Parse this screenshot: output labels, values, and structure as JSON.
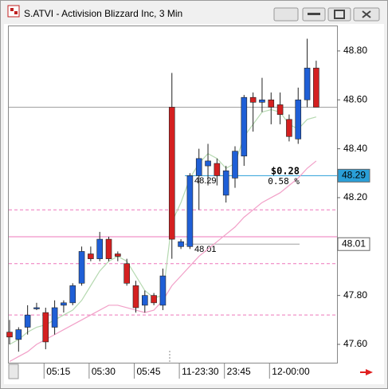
{
  "chart_data": {
    "type": "candlestick",
    "title": "S.ATVI - Activision Blizzard Inc, 3 Min",
    "categories": [
      null,
      null,
      null,
      null,
      "05:15",
      null,
      null,
      null,
      null,
      "05:30",
      null,
      null,
      null,
      null,
      "05:45",
      null,
      null,
      null,
      null,
      "11-23:30",
      null,
      null,
      null,
      null,
      "23:45",
      null,
      null,
      null,
      null,
      "12-00:00",
      null,
      null,
      null,
      null,
      null
    ],
    "open": [
      47.65,
      47.62,
      47.67,
      47.75,
      47.73,
      47.67,
      47.76,
      47.77,
      47.85,
      47.97,
      47.95,
      48.03,
      47.97,
      47.93,
      47.84,
      47.76,
      47.8,
      47.76,
      48.57,
      48.0,
      48.0,
      48.29,
      48.33,
      48.34,
      48.21,
      48.28,
      48.37,
      48.61,
      48.59,
      48.6,
      48.58,
      48.52,
      48.44,
      48.6,
      48.73
    ],
    "high": [
      47.7,
      47.67,
      47.76,
      47.77,
      47.75,
      47.78,
      47.78,
      47.85,
      48.0,
      48.0,
      48.06,
      48.04,
      47.98,
      47.95,
      47.86,
      47.82,
      47.81,
      47.91,
      48.71,
      48.03,
      48.3,
      48.4,
      48.42,
      48.36,
      48.33,
      48.41,
      48.62,
      48.63,
      48.69,
      48.63,
      48.63,
      48.54,
      48.65,
      48.85,
      48.76
    ],
    "low": [
      47.6,
      47.57,
      47.64,
      47.74,
      47.58,
      47.64,
      47.73,
      47.76,
      47.84,
      47.94,
      47.94,
      47.94,
      47.94,
      47.84,
      47.73,
      47.73,
      47.76,
      47.74,
      47.95,
      47.99,
      47.99,
      48.15,
      48.25,
      48.25,
      48.18,
      48.24,
      48.33,
      48.47,
      48.55,
      48.5,
      48.5,
      48.43,
      48.42,
      48.57,
      48.57
    ],
    "close": [
      47.63,
      47.66,
      47.72,
      47.75,
      47.61,
      47.75,
      47.77,
      47.84,
      47.98,
      47.95,
      48.03,
      47.95,
      47.96,
      47.85,
      47.75,
      47.8,
      47.77,
      47.88,
      48.03,
      48.02,
      48.29,
      48.36,
      48.35,
      48.29,
      48.31,
      48.39,
      48.61,
      48.59,
      48.6,
      48.57,
      48.54,
      48.45,
      48.6,
      48.73,
      48.57
    ],
    "up_color": "#1f5fd6",
    "down_color": "#d42020",
    "overlays": [
      {
        "color": "#b5d9b0",
        "values": [
          47.6,
          47.62,
          47.65,
          47.67,
          47.68,
          47.7,
          47.72,
          47.74,
          47.78,
          47.84,
          47.9,
          47.94,
          47.96,
          47.94,
          47.88,
          47.82,
          47.79,
          47.8,
          48.1,
          48.18,
          48.28,
          48.34,
          48.38,
          48.36,
          48.32,
          48.34,
          48.45,
          48.5,
          48.55,
          48.56,
          48.55,
          48.5,
          48.48,
          48.52,
          48.53
        ]
      },
      {
        "color": "#f2a0c8",
        "values": [
          47.53,
          47.55,
          47.57,
          47.6,
          47.62,
          47.64,
          47.66,
          47.68,
          47.7,
          47.72,
          47.74,
          47.76,
          47.76,
          47.75,
          47.74,
          47.73,
          47.74,
          47.78,
          47.84,
          47.88,
          47.92,
          47.96,
          47.99,
          48.02,
          48.05,
          48.08,
          48.12,
          48.15,
          48.18,
          48.2,
          48.22,
          48.25,
          48.28,
          48.32,
          48.35
        ]
      }
    ],
    "levels": [
      {
        "value": 48.57,
        "color": "#a0a0a0",
        "dash": false
      },
      {
        "value": 48.15,
        "color": "#ee77bb",
        "dash": true
      },
      {
        "value": 48.04,
        "color": "#ee77bb",
        "dash": false
      },
      {
        "value": 47.93,
        "color": "#ee77bb",
        "dash": true
      },
      {
        "value": 47.72,
        "color": "#ee77bb",
        "dash": true
      }
    ],
    "reference_lines": [
      {
        "value": 48.29,
        "label": "48.29",
        "color": "#2a9fd8"
      },
      {
        "value": 48.01,
        "label": "48.01",
        "color": "#a0a0a0"
      }
    ],
    "annotations": [
      "$0.28",
      "0.58 %"
    ],
    "price_tags": [
      {
        "value": 48.29,
        "label": "48.29",
        "color": "#2a9fd8"
      },
      {
        "value": 48.01,
        "label": "48.01",
        "color": "#ffffff"
      }
    ],
    "ylim": [
      47.525,
      48.904
    ],
    "yticks": [
      {
        "value": 47.6,
        "label": "47.60"
      },
      {
        "value": 47.8,
        "label": "47.80"
      },
      {
        "value": 48.2,
        "label": "48.20"
      },
      {
        "value": 48.4,
        "label": "48.40"
      },
      {
        "value": 48.6,
        "label": "48.60"
      },
      {
        "value": 48.8,
        "label": "48.80"
      }
    ],
    "grid": false
  }
}
